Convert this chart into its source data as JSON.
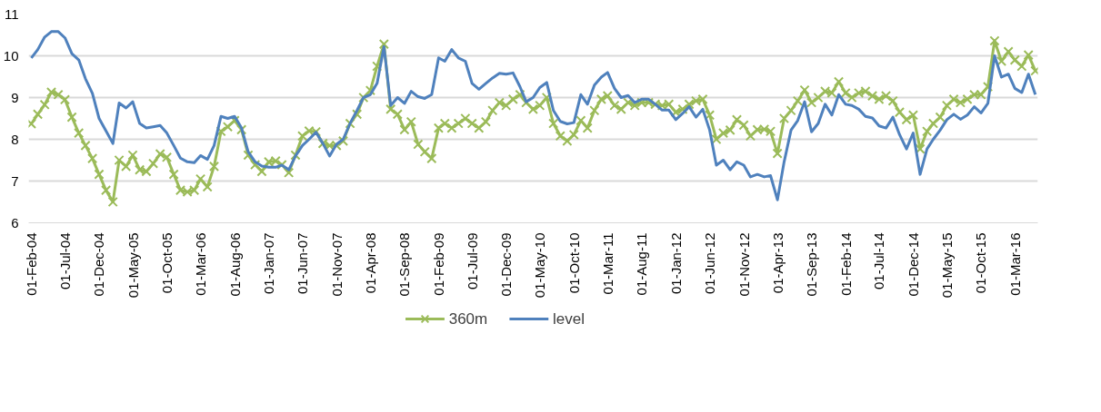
{
  "chart_data": {
    "type": "line",
    "x": [
      "2004-02",
      "2004-03",
      "2004-04",
      "2004-05",
      "2004-06",
      "2004-07",
      "2004-08",
      "2004-09",
      "2004-10",
      "2004-11",
      "2004-12",
      "2005-01",
      "2005-02",
      "2005-03",
      "2005-04",
      "2005-05",
      "2005-06",
      "2005-07",
      "2005-08",
      "2005-09",
      "2005-10",
      "2005-11",
      "2005-12",
      "2006-01",
      "2006-02",
      "2006-03",
      "2006-04",
      "2006-05",
      "2006-06",
      "2006-07",
      "2006-08",
      "2006-09",
      "2006-10",
      "2006-11",
      "2006-12",
      "2007-01",
      "2007-02",
      "2007-03",
      "2007-04",
      "2007-05",
      "2007-06",
      "2007-07",
      "2007-08",
      "2007-09",
      "2007-10",
      "2007-11",
      "2007-12",
      "2008-01",
      "2008-02",
      "2008-03",
      "2008-04",
      "2008-05",
      "2008-06",
      "2008-07",
      "2008-08",
      "2008-09",
      "2008-10",
      "2008-11",
      "2008-12",
      "2009-01",
      "2009-02",
      "2009-03",
      "2009-04",
      "2009-05",
      "2009-06",
      "2009-07",
      "2009-08",
      "2009-09",
      "2009-10",
      "2009-11",
      "2009-12",
      "2010-01",
      "2010-02",
      "2010-03",
      "2010-04",
      "2010-05",
      "2010-06",
      "2010-07",
      "2010-08",
      "2010-09",
      "2010-10",
      "2010-11",
      "2010-12",
      "2011-01",
      "2011-02",
      "2011-03",
      "2011-04",
      "2011-05",
      "2011-06",
      "2011-07",
      "2011-08",
      "2011-09",
      "2011-10",
      "2011-11",
      "2011-12",
      "2012-01",
      "2012-02",
      "2012-03",
      "2012-04",
      "2012-05",
      "2012-06",
      "2012-07",
      "2012-08",
      "2012-09",
      "2012-10",
      "2012-11",
      "2012-12",
      "2013-01",
      "2013-02",
      "2013-03",
      "2013-04",
      "2013-05",
      "2013-06",
      "2013-07",
      "2013-08",
      "2013-09",
      "2013-10",
      "2013-11",
      "2013-12",
      "2014-01",
      "2014-02",
      "2014-03",
      "2014-04",
      "2014-05",
      "2014-06",
      "2014-07",
      "2014-08",
      "2014-09",
      "2014-10",
      "2014-11",
      "2014-12",
      "2015-01",
      "2015-02",
      "2015-03",
      "2015-04",
      "2015-05",
      "2015-06",
      "2015-07",
      "2015-08",
      "2015-09",
      "2015-10",
      "2015-11",
      "2015-12",
      "2016-01",
      "2016-02",
      "2016-03",
      "2016-04",
      "2016-05",
      "2016-06"
    ],
    "series": [
      {
        "name": "360m",
        "color": "#9bbb59",
        "marker": "cross",
        "values": [
          8.37,
          8.6,
          8.83,
          9.13,
          9.07,
          8.95,
          8.53,
          8.15,
          7.85,
          7.54,
          7.16,
          6.78,
          6.5,
          7.5,
          7.35,
          7.62,
          7.27,
          7.23,
          7.42,
          7.65,
          7.57,
          7.16,
          6.78,
          6.74,
          6.78,
          7.05,
          6.86,
          7.35,
          8.19,
          8.3,
          8.45,
          8.23,
          7.62,
          7.39,
          7.23,
          7.46,
          7.48,
          7.39,
          7.2,
          7.62,
          8.08,
          8.2,
          8.18,
          7.9,
          7.85,
          7.85,
          7.96,
          8.38,
          8.6,
          9.0,
          9.17,
          9.75,
          10.28,
          8.72,
          8.6,
          8.23,
          8.42,
          7.88,
          7.7,
          7.54,
          8.27,
          8.38,
          8.27,
          8.38,
          8.5,
          8.38,
          8.27,
          8.42,
          8.69,
          8.88,
          8.81,
          8.96,
          9.07,
          8.88,
          8.72,
          8.81,
          9.0,
          8.38,
          8.08,
          7.96,
          8.11,
          8.45,
          8.27,
          8.69,
          8.96,
          9.04,
          8.81,
          8.72,
          8.88,
          8.81,
          8.88,
          8.88,
          8.84,
          8.81,
          8.84,
          8.65,
          8.72,
          8.84,
          8.92,
          8.96,
          8.58,
          8.0,
          8.15,
          8.22,
          8.47,
          8.34,
          8.08,
          8.23,
          8.24,
          8.19,
          7.66,
          8.5,
          8.69,
          8.92,
          9.18,
          8.88,
          9.0,
          9.15,
          9.11,
          9.38,
          9.11,
          9.0,
          9.11,
          9.15,
          9.04,
          8.96,
          9.04,
          8.92,
          8.65,
          8.47,
          8.58,
          7.77,
          8.19,
          8.38,
          8.53,
          8.81,
          8.96,
          8.88,
          8.96,
          9.07,
          9.07,
          9.26,
          10.36,
          9.87,
          10.1,
          9.9,
          9.75,
          10.02,
          9.64
        ]
      },
      {
        "name": "level",
        "color": "#4f81bd",
        "marker": "none",
        "values": [
          9.95,
          10.15,
          10.45,
          10.58,
          10.58,
          10.43,
          10.05,
          9.9,
          9.45,
          9.1,
          8.5,
          8.2,
          7.9,
          8.87,
          8.75,
          8.9,
          8.38,
          8.27,
          8.3,
          8.33,
          8.15,
          7.85,
          7.55,
          7.46,
          7.44,
          7.61,
          7.52,
          7.85,
          8.55,
          8.5,
          8.55,
          8.27,
          7.7,
          7.46,
          7.36,
          7.33,
          7.33,
          7.38,
          7.27,
          7.6,
          7.85,
          8.0,
          8.17,
          7.9,
          7.6,
          7.88,
          8.0,
          8.38,
          8.69,
          9.0,
          9.07,
          9.34,
          10.22,
          8.81,
          9.0,
          8.86,
          9.15,
          9.02,
          8.98,
          9.07,
          9.95,
          9.87,
          10.15,
          9.95,
          9.87,
          9.34,
          9.2,
          9.34,
          9.47,
          9.58,
          9.56,
          9.59,
          9.26,
          8.9,
          9.0,
          9.24,
          9.36,
          8.69,
          8.43,
          8.37,
          8.4,
          9.07,
          8.84,
          9.3,
          9.49,
          9.6,
          9.22,
          9.0,
          9.05,
          8.88,
          8.96,
          8.96,
          8.84,
          8.7,
          8.7,
          8.47,
          8.62,
          8.78,
          8.53,
          8.72,
          8.22,
          7.38,
          7.5,
          7.27,
          7.46,
          7.38,
          7.1,
          7.16,
          7.1,
          7.13,
          6.55,
          7.46,
          8.22,
          8.45,
          8.9,
          8.18,
          8.38,
          8.84,
          8.58,
          9.07,
          8.84,
          8.81,
          8.72,
          8.55,
          8.51,
          8.32,
          8.27,
          8.53,
          8.11,
          7.77,
          8.15,
          7.16,
          7.77,
          8.0,
          8.22,
          8.47,
          8.6,
          8.48,
          8.58,
          8.78,
          8.63,
          8.86,
          10.0,
          9.49,
          9.56,
          9.22,
          9.12,
          9.56,
          9.07
        ]
      }
    ],
    "xlim": [
      "2004-01-20",
      "2016-06-12"
    ],
    "xticks": [
      {
        "value": "2004-02",
        "label": "01-Feb-04"
      },
      {
        "value": "2004-07",
        "label": "01-Jul-04"
      },
      {
        "value": "2004-12",
        "label": "01-Dec-04"
      },
      {
        "value": "2005-05",
        "label": "01-May-05"
      },
      {
        "value": "2005-10",
        "label": "01-Oct-05"
      },
      {
        "value": "2006-03",
        "label": "01-Mar-06"
      },
      {
        "value": "2006-08",
        "label": "01-Aug-06"
      },
      {
        "value": "2007-01",
        "label": "01-Jan-07"
      },
      {
        "value": "2007-06",
        "label": "01-Jun-07"
      },
      {
        "value": "2007-11",
        "label": "01-Nov-07"
      },
      {
        "value": "2008-04",
        "label": "01-Apr-08"
      },
      {
        "value": "2008-09",
        "label": "01-Sep-08"
      },
      {
        "value": "2009-02",
        "label": "01-Feb-09"
      },
      {
        "value": "2009-07",
        "label": "01-Jul-09"
      },
      {
        "value": "2009-12",
        "label": "01-Dec-09"
      },
      {
        "value": "2010-05",
        "label": "01-May-10"
      },
      {
        "value": "2010-10",
        "label": "01-Oct-10"
      },
      {
        "value": "2011-03",
        "label": "01-Mar-11"
      },
      {
        "value": "2011-08",
        "label": "01-Aug-11"
      },
      {
        "value": "2012-01",
        "label": "01-Jan-12"
      },
      {
        "value": "2012-06",
        "label": "01-Jun-12"
      },
      {
        "value": "2012-11",
        "label": "01-Nov-12"
      },
      {
        "value": "2013-04",
        "label": "01-Apr-13"
      },
      {
        "value": "2013-09",
        "label": "01-Sep-13"
      },
      {
        "value": "2014-02",
        "label": "01-Feb-14"
      },
      {
        "value": "2014-07",
        "label": "01-Jul-14"
      },
      {
        "value": "2014-12",
        "label": "01-Dec-14"
      },
      {
        "value": "2015-05",
        "label": "01-May-15"
      },
      {
        "value": "2015-10",
        "label": "01-Oct-15"
      },
      {
        "value": "2016-03",
        "label": "01-Mar-16"
      }
    ],
    "ylim": [
      6,
      11
    ],
    "yticks": [
      6,
      7,
      8,
      9,
      10,
      11
    ],
    "grid": "y",
    "legend": "bottom",
    "line_style": "solid"
  }
}
